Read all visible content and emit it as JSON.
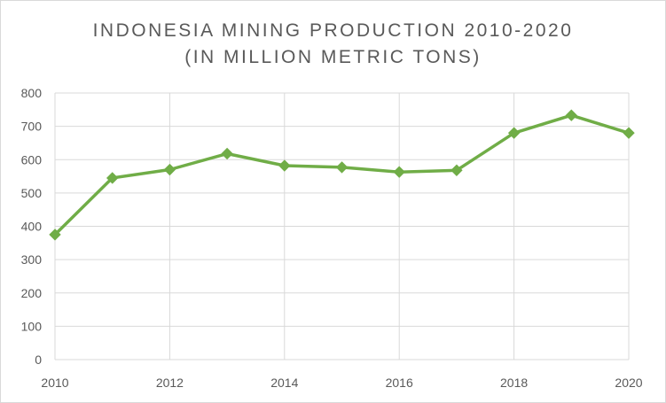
{
  "chart_data": {
    "type": "line",
    "title_lines": [
      "INDONESIA MINING PRODUCTION 2010-2020",
      "(IN MILLION METRIC TONS)"
    ],
    "xlabel": "",
    "ylabel": "",
    "x": [
      2010,
      2011,
      2012,
      2013,
      2014,
      2015,
      2016,
      2017,
      2018,
      2019,
      2020
    ],
    "series": [
      {
        "values": [
          375,
          545,
          570,
          618,
          582,
          577,
          563,
          568,
          680,
          733,
          680
        ]
      }
    ],
    "ylim": [
      0,
      800
    ],
    "xlim": [
      2010,
      2020
    ],
    "y_ticks": [
      "0",
      "100",
      "200",
      "300",
      "400",
      "500",
      "600",
      "700",
      "800"
    ],
    "x_ticks": [
      "2010",
      "2012",
      "2014",
      "2016",
      "2018",
      "2020"
    ],
    "grid": true,
    "legend": "none",
    "colors": {
      "line": "#70ad47",
      "grid": "#d9d9d9",
      "text": "#595959"
    }
  }
}
